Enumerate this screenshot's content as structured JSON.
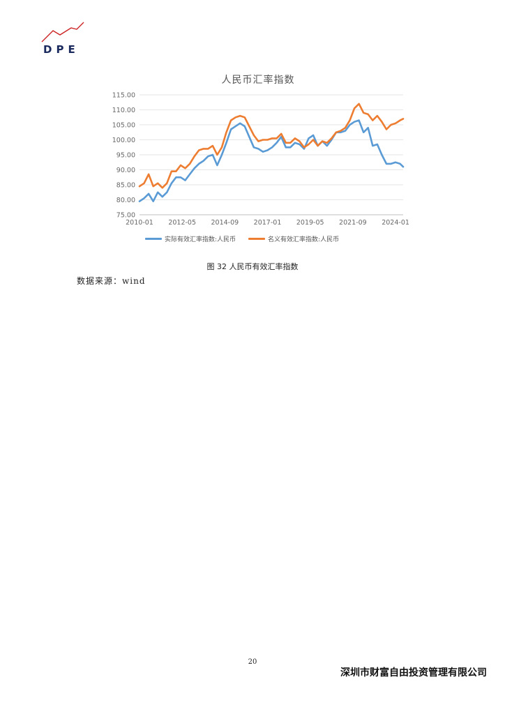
{
  "header": {
    "logo_text": "DPE",
    "logo_color": "#cc2222"
  },
  "chart_data": {
    "type": "line",
    "title": "人民币汇率指数",
    "x_tick_labels": [
      "2010-01",
      "2012-05",
      "2014-09",
      "2017-01",
      "2019-05",
      "2021-09",
      "2024-01"
    ],
    "y_tick_labels": [
      "75.00",
      "80.00",
      "85.00",
      "90.00",
      "95.00",
      "100.00",
      "105.00",
      "110.00",
      "115.00"
    ],
    "ylim": [
      75,
      115
    ],
    "x_range": [
      "2010-01",
      "2024-06"
    ],
    "grid": "horizontal",
    "legend_position": "bottom",
    "x": [
      "2010-01",
      "2010-04",
      "2010-07",
      "2010-10",
      "2011-01",
      "2011-04",
      "2011-07",
      "2011-10",
      "2012-01",
      "2012-04",
      "2012-07",
      "2012-10",
      "2013-01",
      "2013-04",
      "2013-07",
      "2013-10",
      "2014-01",
      "2014-04",
      "2014-07",
      "2014-10",
      "2015-01",
      "2015-04",
      "2015-07",
      "2015-10",
      "2016-01",
      "2016-04",
      "2016-07",
      "2016-10",
      "2017-01",
      "2017-04",
      "2017-07",
      "2017-10",
      "2018-01",
      "2018-04",
      "2018-07",
      "2018-10",
      "2019-01",
      "2019-04",
      "2019-07",
      "2019-10",
      "2020-01",
      "2020-04",
      "2020-07",
      "2020-10",
      "2021-01",
      "2021-04",
      "2021-07",
      "2021-10",
      "2022-01",
      "2022-04",
      "2022-07",
      "2022-10",
      "2023-01",
      "2023-04",
      "2023-07",
      "2023-10",
      "2024-01",
      "2024-04",
      "2024-06"
    ],
    "series": [
      {
        "name": "实际有效汇率指数:人民币",
        "color": "#5b9bd5",
        "values": [
          79.5,
          80.5,
          82.0,
          79.5,
          82.5,
          81.0,
          82.5,
          85.5,
          87.5,
          87.5,
          86.5,
          88.5,
          90.5,
          92.0,
          93.0,
          94.5,
          95.0,
          91.5,
          95.0,
          99.0,
          103.5,
          104.5,
          105.5,
          104.5,
          101.0,
          97.5,
          97.0,
          96.0,
          96.5,
          97.5,
          99.0,
          101.0,
          97.5,
          97.5,
          99.0,
          98.5,
          97.0,
          100.5,
          101.5,
          98.0,
          99.5,
          98.0,
          100.0,
          102.5,
          102.5,
          103.0,
          105.0,
          106.0,
          106.5,
          102.5,
          104.0,
          98.0,
          98.5,
          95.0,
          92.0,
          92.0,
          92.5,
          92.0,
          91.0
        ]
      },
      {
        "name": "名义有效汇率指数:人民币",
        "color": "#ed7d31",
        "values": [
          84.5,
          85.5,
          88.5,
          84.5,
          85.5,
          84.0,
          85.5,
          89.5,
          89.5,
          91.5,
          90.5,
          92.0,
          94.5,
          96.5,
          97.0,
          97.0,
          98.0,
          95.0,
          97.5,
          102.5,
          106.5,
          107.5,
          108.0,
          107.5,
          104.5,
          101.5,
          99.5,
          100.0,
          100.0,
          100.5,
          100.5,
          102.0,
          99.0,
          99.0,
          100.5,
          99.5,
          97.5,
          98.5,
          100.0,
          98.0,
          99.5,
          99.0,
          100.5,
          102.5,
          103.0,
          104.0,
          106.5,
          110.5,
          112.0,
          109.0,
          108.5,
          106.5,
          108.0,
          106.0,
          103.5,
          105.0,
          105.5,
          106.5,
          107.0
        ]
      }
    ]
  },
  "figure_caption": "图 32 人民币有效汇率指数",
  "source_note": "数据来源：wind",
  "footer": {
    "page_number": "20",
    "company": "深圳市财富自由投资管理有限公司"
  }
}
